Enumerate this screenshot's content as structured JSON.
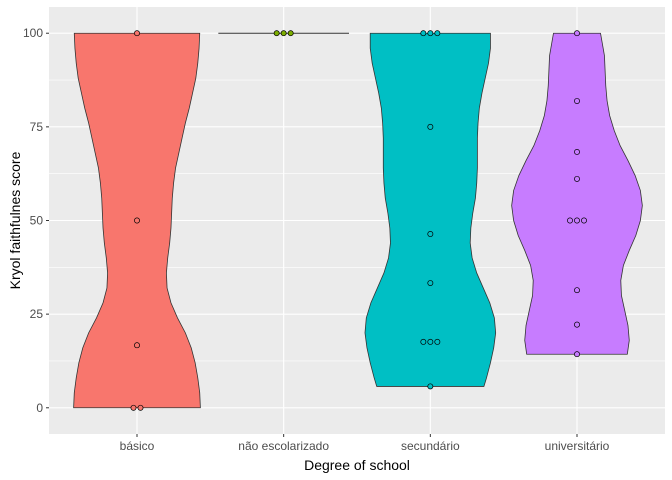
{
  "chart_data": {
    "type": "violin",
    "title": "",
    "xlabel": "Degree of school",
    "ylabel": "Kryol faithfulnes score",
    "ylim": [
      -7,
      107
    ],
    "yticks": [
      0,
      25,
      50,
      75,
      100
    ],
    "grid": true,
    "legend": "none",
    "categories": [
      "básico",
      "não escolarizado",
      "secundário",
      "universitário"
    ],
    "series": [
      {
        "category": "básico",
        "color": "#F8766D",
        "points": [
          100,
          50,
          16.7,
          0,
          0
        ],
        "density": [
          [
            0,
            0.97
          ],
          [
            4,
            0.96
          ],
          [
            8,
            0.93
          ],
          [
            12,
            0.89
          ],
          [
            16,
            0.83
          ],
          [
            20,
            0.74
          ],
          [
            24,
            0.62
          ],
          [
            28,
            0.52
          ],
          [
            32,
            0.46
          ],
          [
            36,
            0.45
          ],
          [
            40,
            0.47
          ],
          [
            44,
            0.5
          ],
          [
            48,
            0.52
          ],
          [
            52,
            0.53
          ],
          [
            56,
            0.54
          ],
          [
            60,
            0.56
          ],
          [
            64,
            0.59
          ],
          [
            68,
            0.64
          ],
          [
            72,
            0.69
          ],
          [
            76,
            0.74
          ],
          [
            80,
            0.8
          ],
          [
            84,
            0.85
          ],
          [
            88,
            0.9
          ],
          [
            92,
            0.93
          ],
          [
            96,
            0.95
          ],
          [
            100,
            0.96
          ]
        ]
      },
      {
        "category": "não escolarizado",
        "color": "#7CAE00",
        "points": [
          100,
          100,
          100
        ],
        "density": [
          [
            100,
            1
          ]
        ]
      },
      {
        "category": "secundário",
        "color": "#00BFC4",
        "points": [
          100,
          100,
          100,
          75,
          46.4,
          33.3,
          17.6,
          17.6,
          17.6,
          5.7
        ],
        "density": [
          [
            5.7,
            0.82
          ],
          [
            8,
            0.86
          ],
          [
            12,
            0.92
          ],
          [
            16,
            0.97
          ],
          [
            20,
            1.0
          ],
          [
            24,
            0.98
          ],
          [
            28,
            0.91
          ],
          [
            32,
            0.81
          ],
          [
            36,
            0.71
          ],
          [
            40,
            0.64
          ],
          [
            44,
            0.61
          ],
          [
            48,
            0.62
          ],
          [
            52,
            0.65
          ],
          [
            56,
            0.69
          ],
          [
            60,
            0.71
          ],
          [
            64,
            0.72
          ],
          [
            68,
            0.72
          ],
          [
            72,
            0.72
          ],
          [
            76,
            0.73
          ],
          [
            80,
            0.75
          ],
          [
            84,
            0.79
          ],
          [
            88,
            0.84
          ],
          [
            92,
            0.89
          ],
          [
            96,
            0.92
          ],
          [
            100,
            0.92
          ]
        ]
      },
      {
        "category": "universitário",
        "color": "#C77CFF",
        "points": [
          100,
          81.9,
          68.3,
          61.1,
          50,
          50,
          50,
          31.4,
          22.2,
          14.3
        ],
        "density": [
          [
            14.3,
            0.77
          ],
          [
            18,
            0.8
          ],
          [
            22,
            0.78
          ],
          [
            26,
            0.73
          ],
          [
            30,
            0.68
          ],
          [
            34,
            0.67
          ],
          [
            38,
            0.71
          ],
          [
            42,
            0.8
          ],
          [
            46,
            0.9
          ],
          [
            50,
            0.97
          ],
          [
            54,
            1.0
          ],
          [
            58,
            0.97
          ],
          [
            62,
            0.89
          ],
          [
            66,
            0.78
          ],
          [
            70,
            0.66
          ],
          [
            74,
            0.57
          ],
          [
            78,
            0.5
          ],
          [
            82,
            0.46
          ],
          [
            86,
            0.44
          ],
          [
            90,
            0.43
          ],
          [
            94,
            0.42
          ],
          [
            96,
            0.4
          ],
          [
            100,
            0.36
          ]
        ]
      }
    ]
  }
}
